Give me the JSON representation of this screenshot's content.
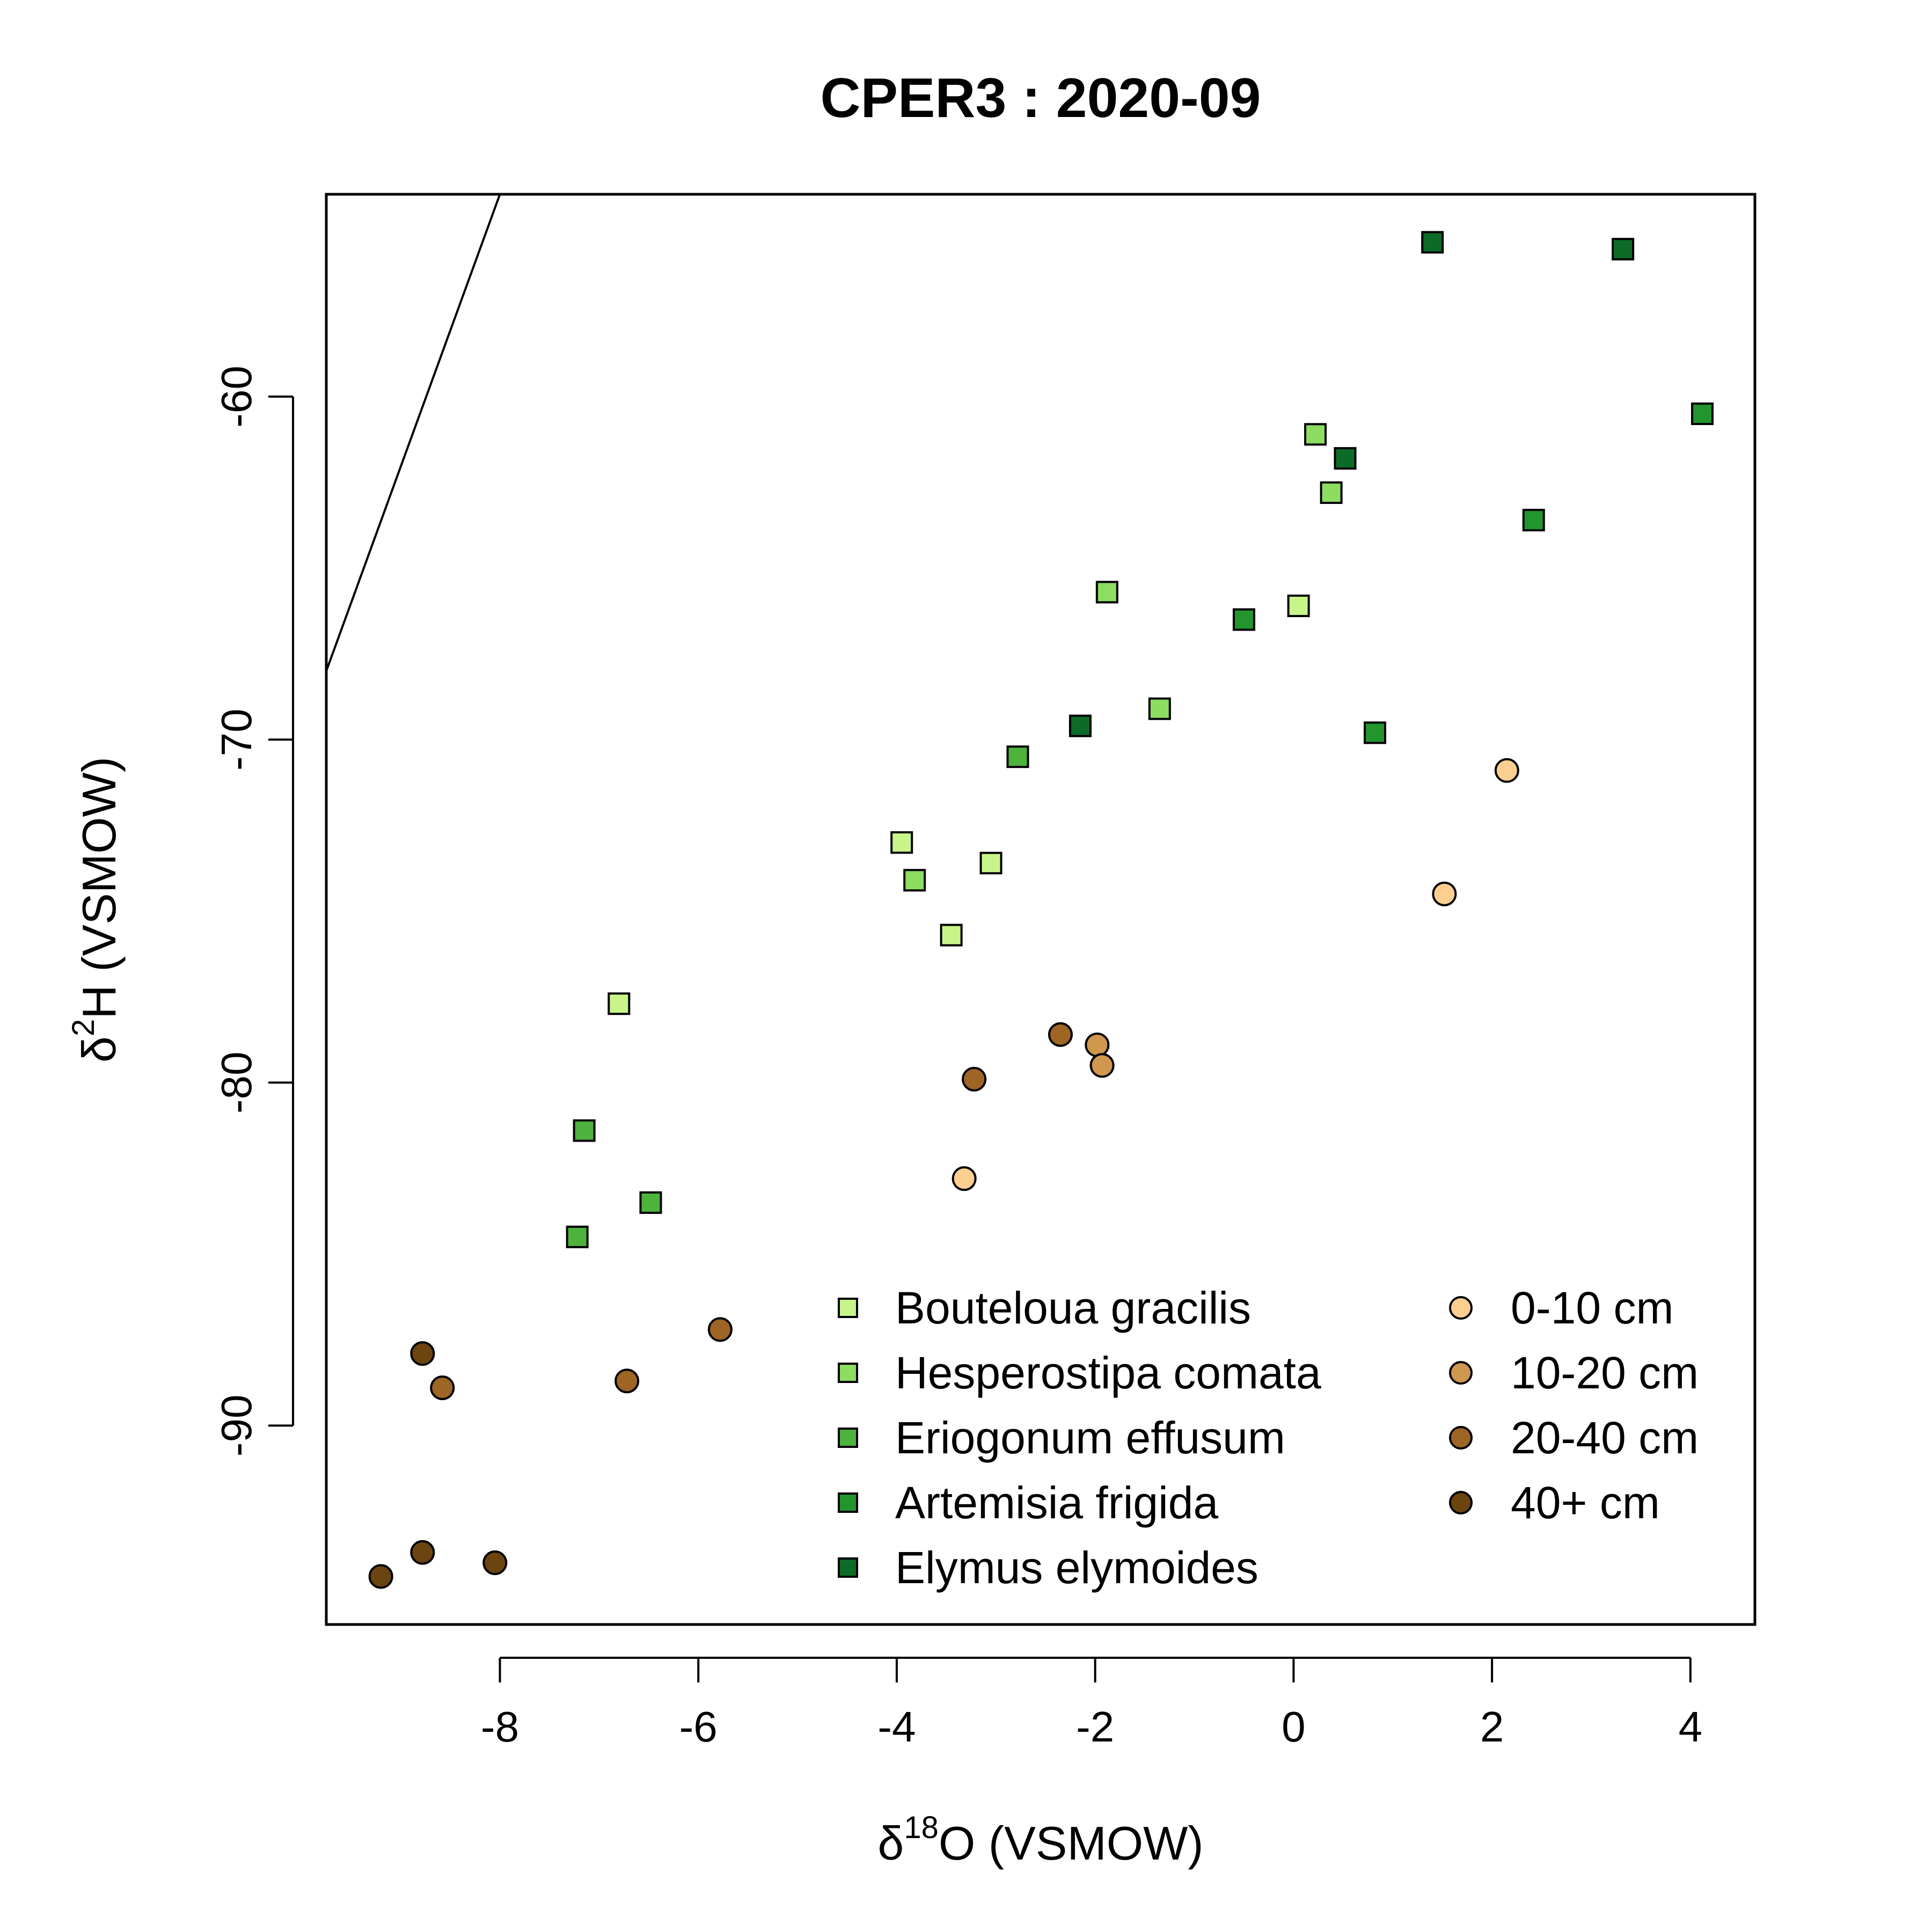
{
  "chart_data": {
    "type": "scatter",
    "title": "CPER3 : 2020-09",
    "xlabel": {
      "prefix": "δ",
      "sup": "18",
      "main": "O (VSMOW)"
    },
    "ylabel": {
      "prefix": "δ",
      "sup": "2",
      "main": "H (VSMOW)"
    },
    "xlim": [
      -9.75,
      4.65
    ],
    "ylim": [
      -95.8,
      -54.1
    ],
    "xticks": [
      -8,
      -6,
      -4,
      -2,
      0,
      2,
      4
    ],
    "yticks": [
      -90,
      -80,
      -70,
      -60
    ],
    "grid": false,
    "legend_position": "bottom-right",
    "reference_line": {
      "label": "",
      "points": [
        [
          -9.75,
          -68.0
        ],
        [
          -8.0,
          -54.1
        ]
      ]
    },
    "plant_series": [
      {
        "name": "Bouteloua gracilis",
        "marker": "square",
        "color": "#c8f58a",
        "points": [
          [
            -6.8,
            -77.7
          ],
          [
            -3.95,
            -73.0
          ],
          [
            -3.45,
            -75.7
          ],
          [
            -3.05,
            -73.6
          ],
          [
            0.05,
            -66.1
          ]
        ]
      },
      {
        "name": "Hesperostipa comata",
        "marker": "square",
        "color": "#8ddd60",
        "points": [
          [
            -3.82,
            -74.1
          ],
          [
            -1.88,
            -65.7
          ],
          [
            -1.35,
            -69.1
          ],
          [
            0.22,
            -61.1
          ],
          [
            0.38,
            -62.8
          ]
        ]
      },
      {
        "name": "Eriogonum effusum",
        "marker": "square",
        "color": "#4db33d",
        "points": [
          [
            -7.15,
            -81.4
          ],
          [
            -7.22,
            -84.5
          ],
          [
            -6.48,
            -83.5
          ],
          [
            -2.78,
            -70.5
          ]
        ]
      },
      {
        "name": "Artemisia frigida",
        "marker": "square",
        "color": "#22952e",
        "points": [
          [
            -0.5,
            -66.5
          ],
          [
            0.82,
            -69.8
          ],
          [
            2.42,
            -63.6
          ],
          [
            4.12,
            -60.5
          ]
        ]
      },
      {
        "name": "Elymus elymoides",
        "marker": "square",
        "color": "#0d6b28",
        "points": [
          [
            -2.15,
            -69.6
          ],
          [
            0.52,
            -61.8
          ],
          [
            1.4,
            -55.5
          ],
          [
            3.32,
            -55.7
          ]
        ]
      }
    ],
    "soil_series": [
      {
        "name": "0-10 cm",
        "marker": "circle",
        "color": "#fccf90",
        "points": [
          [
            -3.32,
            -82.8
          ],
          [
            1.52,
            -74.5
          ],
          [
            2.15,
            -70.9
          ]
        ]
      },
      {
        "name": "10-20 cm",
        "marker": "circle",
        "color": "#d0974f",
        "points": [
          [
            -1.98,
            -78.9
          ],
          [
            -1.93,
            -79.5
          ]
        ]
      },
      {
        "name": "20-40 cm",
        "marker": "circle",
        "color": "#9e6525",
        "points": [
          [
            -8.58,
            -88.9
          ],
          [
            -6.72,
            -88.7
          ],
          [
            -5.78,
            -87.2
          ],
          [
            -3.22,
            -79.9
          ],
          [
            -2.35,
            -78.6
          ]
        ]
      },
      {
        "name": "40+ cm",
        "marker": "circle",
        "color": "#6b4410",
        "points": [
          [
            -9.2,
            -94.4
          ],
          [
            -8.78,
            -87.9
          ],
          [
            -8.78,
            -93.7
          ],
          [
            -8.05,
            -94.0
          ]
        ]
      }
    ]
  }
}
